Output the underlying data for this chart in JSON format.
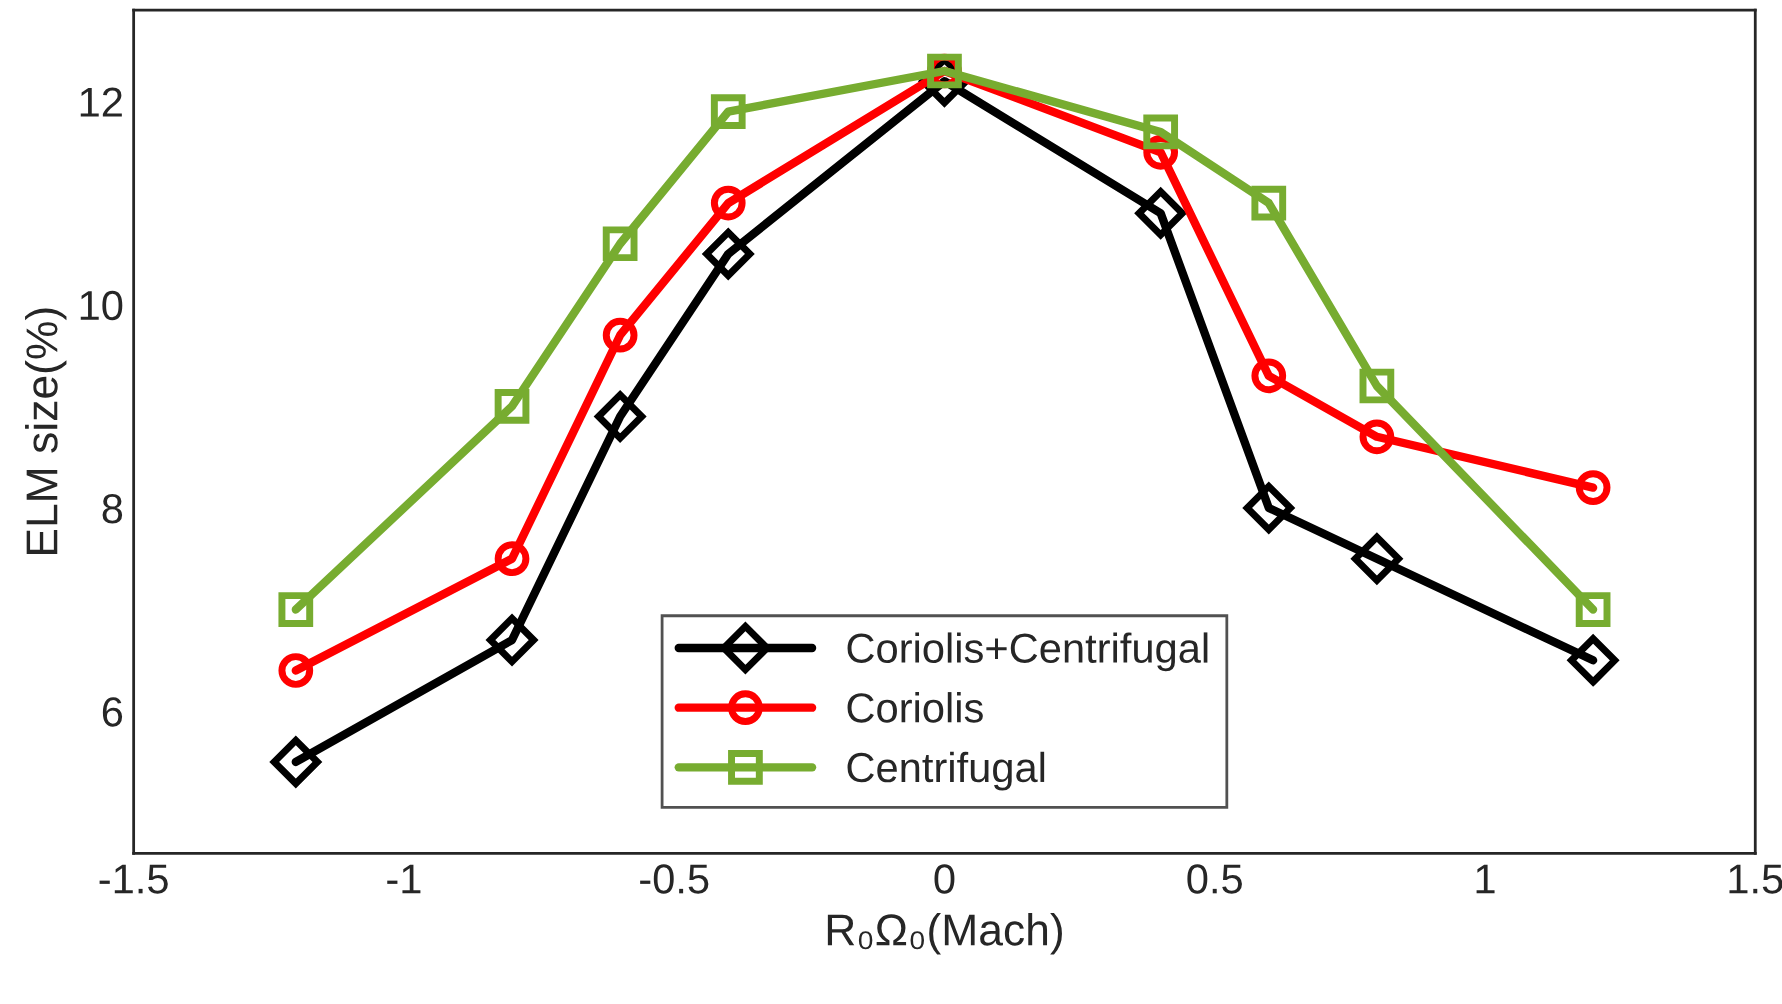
{
  "chart_data": {
    "type": "line",
    "xlabel": "R₀Ω₀(Mach)",
    "ylabel": "ELM size(%)",
    "x": [
      -1.2,
      -0.8,
      -0.6,
      -0.4,
      0,
      0.4,
      0.6,
      0.8,
      1.2
    ],
    "xlim": [
      -1.5,
      1.5
    ],
    "xticks": [
      -1.5,
      -1,
      -0.5,
      0,
      0.5,
      1,
      1.5
    ],
    "ylim": [
      4.6,
      12.9
    ],
    "yticks": [
      6,
      8,
      10,
      12
    ],
    "grid": false,
    "legend": "bottom",
    "line_style": "solid",
    "series": [
      {
        "name": "Coriolis+Centrifugal",
        "color": "#000000",
        "marker": "diamond",
        "values": [
          5.5,
          6.7,
          8.9,
          10.5,
          12.2,
          10.9,
          8.0,
          7.5,
          6.5
        ]
      },
      {
        "name": "Coriolis",
        "color": "#ff0000",
        "marker": "circle",
        "values": [
          6.4,
          7.5,
          9.7,
          11.0,
          12.3,
          11.5,
          9.3,
          8.7,
          8.2
        ]
      },
      {
        "name": "Centrifugal",
        "color": "#77ac30",
        "marker": "square",
        "values": [
          7.0,
          9.0,
          10.6,
          11.9,
          12.3,
          11.7,
          11.0,
          9.2,
          7.0
        ]
      }
    ]
  }
}
